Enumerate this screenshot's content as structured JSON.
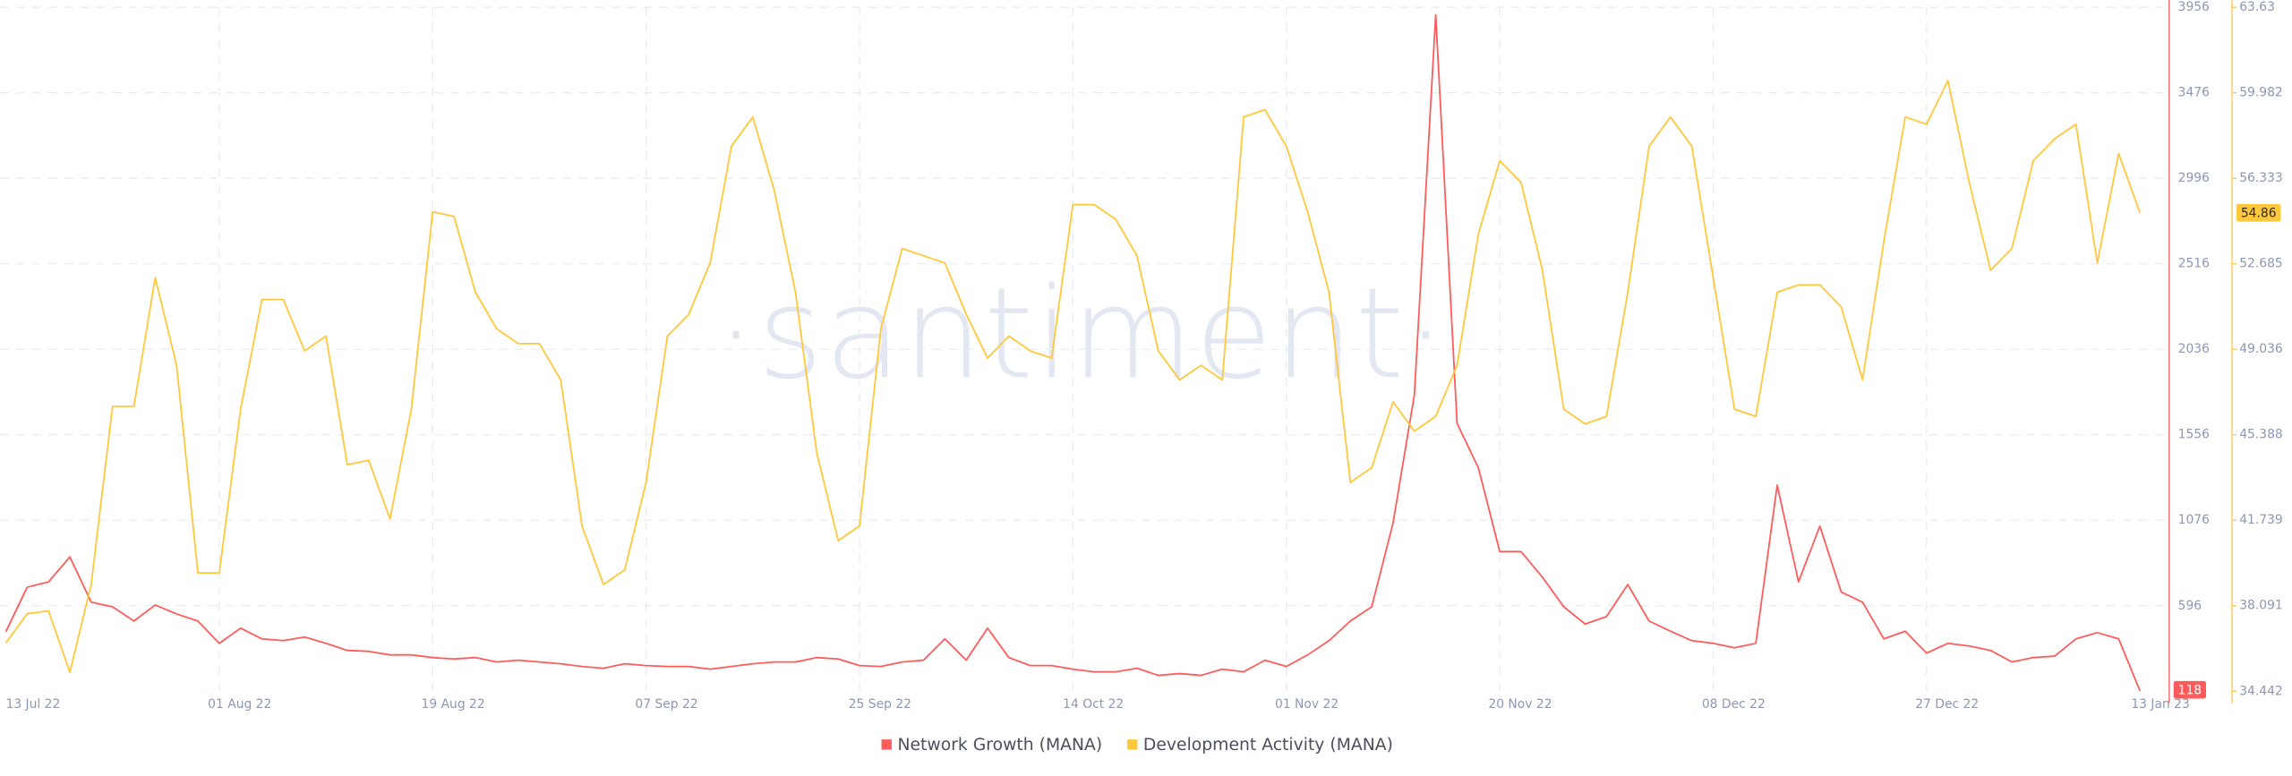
{
  "chart_data": {
    "type": "line",
    "watermark": "·santiment·",
    "categories": [
      "13 Jul 22",
      null,
      null,
      null,
      null,
      null,
      null,
      null,
      null,
      null,
      "01 Aug 22",
      null,
      null,
      null,
      null,
      null,
      null,
      null,
      null,
      null,
      "19 Aug 22",
      null,
      null,
      null,
      null,
      null,
      null,
      null,
      null,
      null,
      "07 Sep 22",
      null,
      null,
      null,
      null,
      null,
      null,
      null,
      null,
      null,
      "25 Sep 22",
      null,
      null,
      null,
      null,
      null,
      null,
      null,
      null,
      null,
      "14 Oct 22",
      null,
      null,
      null,
      null,
      null,
      null,
      null,
      null,
      null,
      "01 Nov 22",
      null,
      null,
      null,
      null,
      null,
      null,
      null,
      null,
      null,
      "20 Nov 22",
      null,
      null,
      null,
      null,
      null,
      null,
      null,
      null,
      null,
      "08 Dec 22",
      null,
      null,
      null,
      null,
      null,
      null,
      null,
      null,
      null,
      "27 Dec 22",
      null,
      null,
      null,
      null,
      null,
      null,
      null,
      null,
      null,
      "13 Jan 23"
    ],
    "series": [
      {
        "name": "Network Growth (MANA)",
        "color": "#ff5b5b",
        "axis": "y",
        "values": [
          450,
          700,
          730,
          870,
          616,
          590,
          510,
          600,
          550,
          510,
          385,
          470,
          410,
          400,
          420,
          385,
          345,
          340,
          320,
          320,
          305,
          297,
          305,
          280,
          290,
          280,
          270,
          255,
          245,
          270,
          260,
          255,
          255,
          240,
          255,
          270,
          280,
          280,
          305,
          297,
          260,
          255,
          280,
          290,
          410,
          290,
          470,
          305,
          260,
          260,
          240,
          225,
          225,
          245,
          205,
          215,
          205,
          240,
          225,
          290,
          255,
          320,
          400,
          510,
          590,
          1060,
          1780,
          3915,
          1620,
          1370,
          900,
          900,
          756,
          590,
          493,
          535,
          715,
          510,
          453,
          400,
          385,
          360,
          385,
          1273,
          730,
          1043,
          673,
          616,
          410,
          453,
          330,
          385,
          370,
          345,
          280,
          305,
          313,
          410,
          445,
          410,
          118
        ]
      },
      {
        "name": "Development Activity (MANA)",
        "color": "#ffc73a",
        "axis": "y2",
        "values": [
          36.5,
          37.75,
          37.87,
          35.25,
          39.0,
          46.6,
          46.6,
          52.09,
          48.35,
          39.49,
          39.49,
          46.48,
          51.16,
          51.16,
          48.97,
          49.6,
          44.11,
          44.3,
          41.8,
          46.48,
          54.9,
          54.71,
          51.47,
          49.91,
          49.28,
          49.28,
          47.73,
          41.49,
          39.0,
          39.62,
          43.36,
          49.6,
          50.53,
          52.72,
          57.7,
          58.95,
          55.83,
          51.47,
          44.61,
          40.87,
          41.49,
          49.91,
          53.34,
          53.03,
          52.72,
          50.53,
          48.66,
          49.6,
          48.97,
          48.66,
          55.21,
          55.21,
          54.59,
          53.03,
          48.97,
          47.73,
          48.35,
          47.73,
          58.95,
          59.26,
          57.7,
          54.9,
          51.47,
          43.36,
          43.98,
          46.79,
          45.54,
          46.17,
          48.35,
          53.96,
          57.08,
          56.15,
          52.41,
          46.48,
          45.85,
          46.17,
          51.47,
          57.7,
          58.95,
          57.7,
          52.09,
          46.48,
          46.17,
          51.47,
          51.78,
          51.78,
          50.84,
          47.73,
          53.65,
          58.95,
          58.64,
          60.51,
          56.15,
          52.41,
          53.34,
          57.08,
          58.02,
          58.64,
          52.72,
          57.39,
          54.86
        ]
      }
    ],
    "ylim": [
      116,
      3956
    ],
    "yticks": [
      596,
      1076,
      1556,
      2036,
      2516,
      2996,
      3476,
      3956
    ],
    "y2lim": [
      34.442,
      63.63
    ],
    "y2ticks": [
      34.442,
      38.091,
      41.739,
      45.388,
      49.036,
      52.685,
      56.333,
      59.982,
      63.63
    ],
    "grid": true
  }
}
